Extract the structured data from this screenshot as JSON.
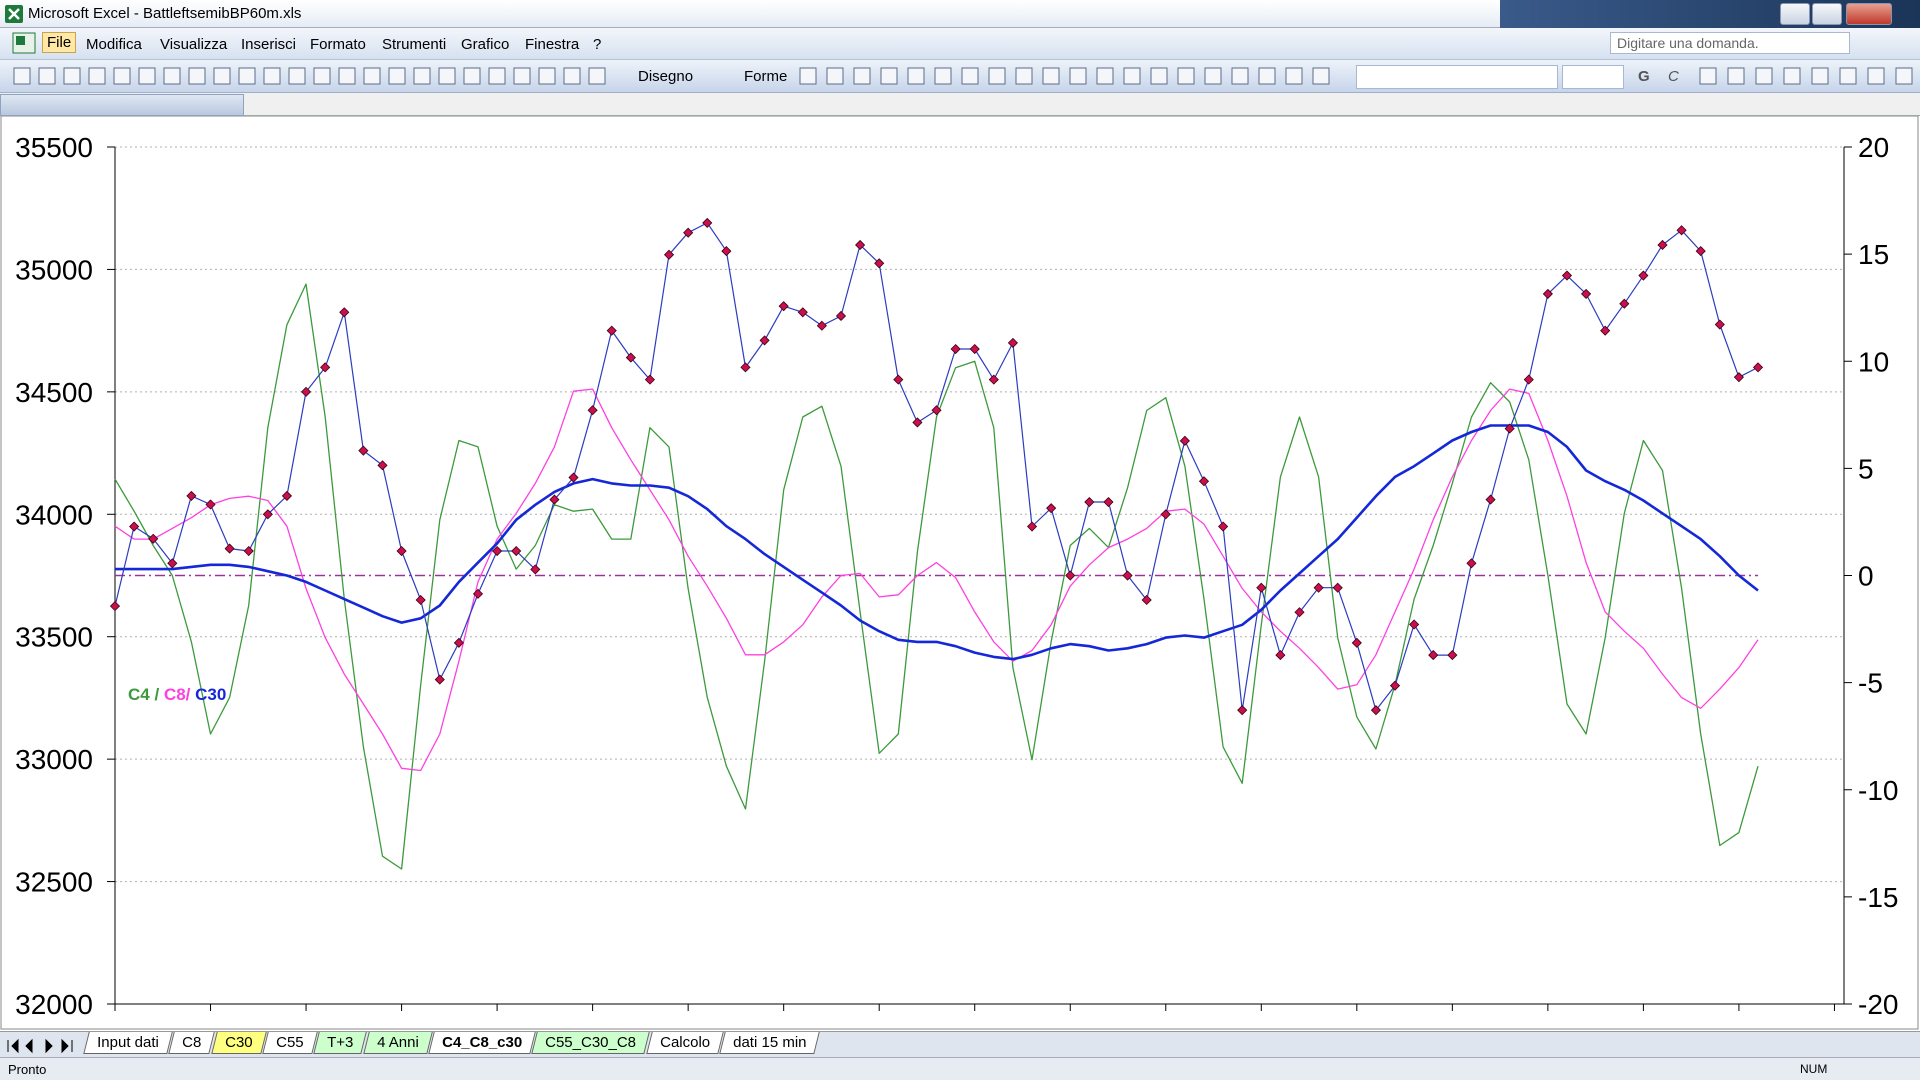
{
  "window": {
    "title": "Microsoft Excel - BattleftsemibBP60m.xls"
  },
  "menu": [
    "File",
    "Modifica",
    "Visualizza",
    "Inserisci",
    "Formato",
    "Strumenti",
    "Grafico",
    "Finestra",
    "?"
  ],
  "help_box": "Digitare una domanda.",
  "toolbar": {
    "draw": "Disegno",
    "shapes": "Forme",
    "bold": "G",
    "italic": "C"
  },
  "chart_data": {
    "type": "line",
    "xlim": [
      0,
      90.5
    ],
    "xticks": [
      0,
      5,
      10,
      15,
      20,
      25,
      30,
      35,
      40,
      45,
      50,
      55,
      60,
      65,
      70,
      75,
      80,
      85,
      90
    ],
    "ylim": [
      32000,
      35500
    ],
    "yticks": [
      32000,
      32500,
      33000,
      33500,
      34000,
      34500,
      35000,
      35500
    ],
    "y2lim": [
      -20,
      20
    ],
    "y2ticks": [
      -20,
      -15,
      -10,
      -5,
      0,
      5,
      10,
      15,
      20
    ],
    "grid": true,
    "legend": "left",
    "legend_separator": "/",
    "x": [
      0,
      1,
      2,
      3,
      4,
      5,
      6,
      7,
      8,
      9,
      10,
      11,
      12,
      13,
      14,
      15,
      16,
      17,
      18,
      19,
      20,
      21,
      22,
      23,
      24,
      25,
      26,
      27,
      28,
      29,
      30,
      31,
      32,
      33,
      34,
      35,
      36,
      37,
      38,
      39,
      40,
      41,
      42,
      43,
      44,
      45,
      46,
      47,
      48,
      49,
      50,
      51,
      52,
      53,
      54,
      55,
      56,
      57,
      58,
      59,
      60,
      61,
      62,
      63,
      64,
      65,
      66,
      67,
      68,
      69,
      70,
      71,
      72,
      73,
      74,
      75,
      76,
      77,
      78,
      79,
      80,
      81,
      82,
      83,
      84,
      85,
      86
    ],
    "series": [
      {
        "name": "C4",
        "color": "#3c9a3c",
        "axis": "y2",
        "width": 1.3,
        "values": [
          4.5,
          3.0,
          1.4,
          0.0,
          -3.1,
          -7.4,
          -5.7,
          -1.4,
          6.9,
          11.7,
          13.6,
          7.4,
          -1.1,
          -8.0,
          -13.1,
          -13.7,
          -5.1,
          2.6,
          6.3,
          6.0,
          2.3,
          0.3,
          1.4,
          3.3,
          3.0,
          3.1,
          1.7,
          1.7,
          6.9,
          6.0,
          -0.6,
          -5.7,
          -8.9,
          -10.9,
          -4.0,
          4.0,
          7.4,
          7.9,
          5.1,
          -1.7,
          -8.3,
          -7.4,
          1.1,
          7.4,
          9.7,
          10.0,
          6.9,
          -4.3,
          -8.6,
          -3.1,
          1.4,
          2.2,
          1.3,
          4.1,
          7.7,
          8.3,
          5.1,
          -1.1,
          -8.0,
          -9.7,
          -2.3,
          4.6,
          7.4,
          4.6,
          -2.9,
          -6.6,
          -8.1,
          -5.1,
          -1.1,
          1.4,
          4.3,
          7.4,
          9.0,
          8.1,
          5.4,
          0.0,
          -6.0,
          -7.4,
          -2.9,
          2.9,
          6.3,
          4.9,
          -0.6,
          -7.4,
          -12.6,
          -12.0,
          -8.9
        ]
      },
      {
        "name": "C8/",
        "color": "#ff40e0",
        "axis": "y2",
        "width": 1.3,
        "values": [
          2.3,
          1.7,
          1.7,
          2.2,
          2.7,
          3.3,
          3.6,
          3.7,
          3.5,
          2.3,
          -0.6,
          -2.9,
          -4.6,
          -6.0,
          -7.4,
          -9.0,
          -9.1,
          -7.4,
          -4.0,
          -0.3,
          1.7,
          2.9,
          4.3,
          6.0,
          8.6,
          8.7,
          6.9,
          5.4,
          4.0,
          2.6,
          0.9,
          -0.5,
          -2.0,
          -3.7,
          -3.7,
          -3.1,
          -2.3,
          -1.0,
          0.0,
          0.1,
          -1.0,
          -0.9,
          0.0,
          0.6,
          -0.1,
          -1.7,
          -3.1,
          -4.0,
          -3.5,
          -2.3,
          -0.5,
          0.5,
          1.3,
          1.7,
          2.2,
          3.0,
          3.1,
          2.4,
          0.9,
          -0.6,
          -1.7,
          -2.6,
          -3.4,
          -4.3,
          -5.3,
          -5.1,
          -3.7,
          -1.7,
          0.3,
          2.6,
          4.6,
          6.3,
          7.7,
          8.7,
          8.5,
          6.3,
          3.7,
          0.6,
          -1.7,
          -2.6,
          -3.4,
          -4.6,
          -5.7,
          -6.2,
          -5.3,
          -4.3,
          -3.0
        ]
      },
      {
        "name": "C30",
        "color": "#1428d8",
        "axis": "y2",
        "width": 2.6,
        "values": [
          0.3,
          0.3,
          0.3,
          0.3,
          0.4,
          0.5,
          0.5,
          0.4,
          0.2,
          0.0,
          -0.3,
          -0.7,
          -1.1,
          -1.5,
          -1.9,
          -2.2,
          -2.0,
          -1.4,
          -0.3,
          0.6,
          1.5,
          2.6,
          3.3,
          3.9,
          4.3,
          4.5,
          4.3,
          4.2,
          4.2,
          4.1,
          3.7,
          3.1,
          2.3,
          1.7,
          1.0,
          0.4,
          -0.2,
          -0.8,
          -1.4,
          -2.1,
          -2.6,
          -3.0,
          -3.1,
          -3.1,
          -3.3,
          -3.6,
          -3.8,
          -3.9,
          -3.7,
          -3.4,
          -3.2,
          -3.3,
          -3.5,
          -3.4,
          -3.2,
          -2.9,
          -2.8,
          -2.9,
          -2.6,
          -2.3,
          -1.6,
          -0.7,
          0.1,
          0.9,
          1.7,
          2.7,
          3.7,
          4.6,
          5.1,
          5.7,
          6.3,
          6.7,
          7.0,
          7.0,
          7.0,
          6.7,
          6.0,
          4.9,
          4.4,
          4.0,
          3.5,
          2.9,
          2.3,
          1.7,
          0.9,
          0.0,
          -0.7
        ]
      },
      {
        "color": "#2c3cc0",
        "marker_color": "#c8104a",
        "marker": "diamond",
        "axis": "y",
        "width": 1.2,
        "values": [
          33625,
          33950,
          33900,
          33800,
          34075,
          34040,
          33860,
          33850,
          34000,
          34075,
          34500,
          34600,
          34825,
          34260,
          34200,
          33850,
          33650,
          33325,
          33475,
          33675,
          33850,
          33850,
          33775,
          34060,
          34150,
          34425,
          34750,
          34640,
          34550,
          35060,
          35150,
          35190,
          35075,
          34600,
          34710,
          34850,
          34825,
          34770,
          34810,
          35100,
          35025,
          34550,
          34375,
          34425,
          34675,
          34675,
          34550,
          34700,
          33950,
          34025,
          33750,
          34050,
          34050,
          33750,
          33650,
          34000,
          34300,
          34135,
          33950,
          33200,
          33700,
          33425,
          33600,
          33700,
          33700,
          33475,
          33200,
          33300,
          33550,
          33425,
          33425,
          33800,
          34060,
          34350,
          34550,
          34900,
          34975,
          34900,
          34750,
          34860,
          34975,
          35100,
          35160,
          35075,
          34775,
          34560,
          34600
        ]
      }
    ],
    "hline": {
      "value": 0,
      "axis": "y2",
      "color": "#993399"
    }
  },
  "sheet_tabs": [
    {
      "name": "Input dati"
    },
    {
      "name": "C8"
    },
    {
      "name": "C30",
      "color": "#ffff80"
    },
    {
      "name": "C55"
    },
    {
      "name": "T+3",
      "color": "#ccffcc"
    },
    {
      "name": "4 Anni",
      "color": "#ccffcc"
    },
    {
      "name": "C4_C8_c30",
      "active": true
    },
    {
      "name": "C55_C30_C8",
      "color": "#ccffcc"
    },
    {
      "name": "Calcolo"
    },
    {
      "name": "dati 15 min"
    }
  ],
  "status": {
    "left": "Pronto",
    "num": "NUM"
  }
}
